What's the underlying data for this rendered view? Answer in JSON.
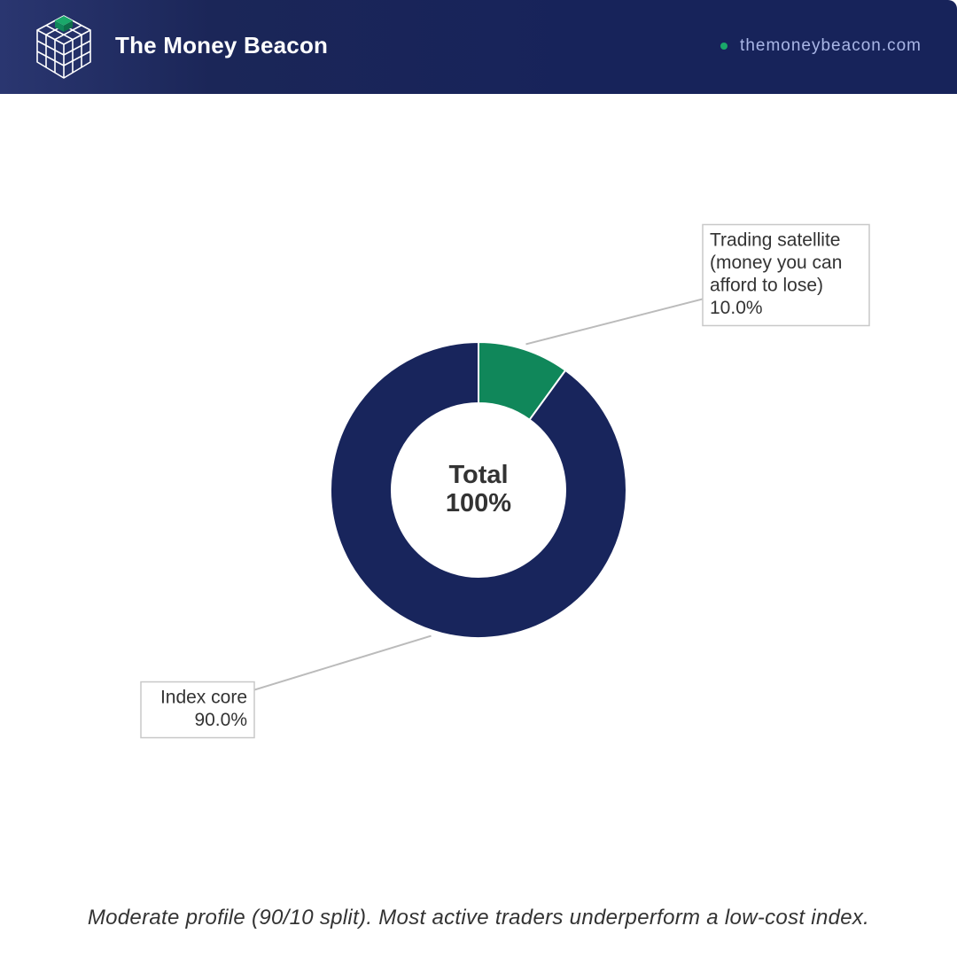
{
  "header": {
    "brand": "The Money Beacon",
    "site_url": "themoneybeacon.com",
    "logo_icon": "cube-grid-icon"
  },
  "colors": {
    "header_bg": "#17235a",
    "accent_green": "#10875a",
    "navy": "#18255c",
    "url_text": "#a9b6e6"
  },
  "chart_data": {
    "type": "pie",
    "style": "donut",
    "center_label": [
      "Total",
      "100%"
    ],
    "slices": [
      {
        "label": [
          "Trading satellite",
          "(money you can",
          "afford to lose)"
        ],
        "value": 10.0,
        "value_label": "10.0%",
        "color": "#10875a"
      },
      {
        "label": [
          "Index core"
        ],
        "value": 90.0,
        "value_label": "90.0%",
        "color": "#18255c"
      }
    ]
  },
  "caption": "Moderate profile (90/10 split). Most active traders underperform a low-cost index."
}
